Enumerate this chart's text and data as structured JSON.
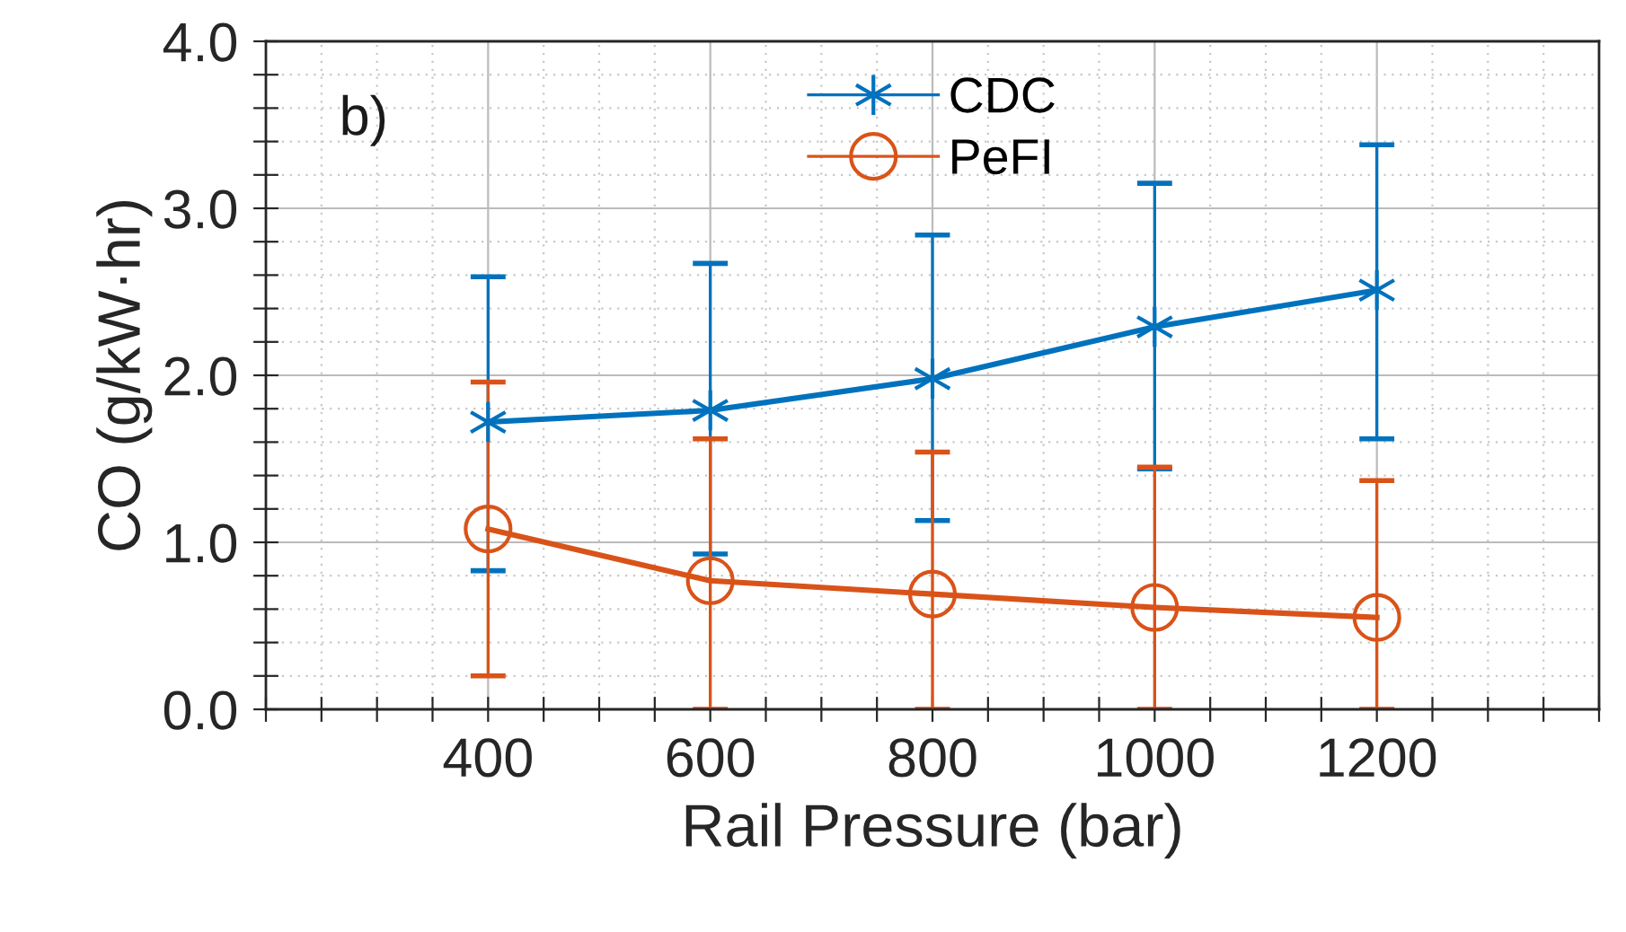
{
  "chart_data": {
    "type": "line",
    "xlabel": "Rail Pressure (bar)",
    "ylabel": "CO (g/kW·hr)",
    "annotations": [
      "b)"
    ],
    "x": [
      400,
      600,
      800,
      1000,
      1200
    ],
    "series": [
      {
        "name": "CDC",
        "color": "#0072bd",
        "marker": "cross",
        "values": [
          1.72,
          1.79,
          1.98,
          2.29,
          2.51
        ],
        "errors": [
          [
            0.83,
            2.59
          ],
          [
            0.93,
            2.67
          ],
          [
            1.13,
            2.84
          ],
          [
            1.44,
            3.15
          ],
          [
            1.62,
            3.38
          ]
        ]
      },
      {
        "name": "PeFI",
        "color": "#d95319",
        "marker": "circle",
        "values": [
          1.08,
          0.77,
          0.69,
          0.61,
          0.55
        ],
        "errors": [
          [
            0.2,
            1.96
          ],
          [
            0,
            1.62
          ],
          [
            0,
            1.54
          ],
          [
            0,
            1.45
          ],
          [
            0,
            1.37
          ]
        ]
      }
    ],
    "xlim": [
      200,
      1400
    ],
    "xticks": [
      {
        "value": 200,
        "label": null
      },
      {
        "value": 250,
        "label": null
      },
      {
        "value": 300,
        "label": null
      },
      {
        "value": 350,
        "label": null
      },
      400,
      {
        "value": 450,
        "label": null
      },
      {
        "value": 500,
        "label": null
      },
      {
        "value": 550,
        "label": null
      },
      600,
      {
        "value": 650,
        "label": null
      },
      {
        "value": 700,
        "label": null
      },
      {
        "value": 750,
        "label": null
      },
      800,
      {
        "value": 850,
        "label": null
      },
      {
        "value": 900,
        "label": null
      },
      {
        "value": 950,
        "label": null
      },
      1000,
      {
        "value": 1050,
        "label": null
      },
      {
        "value": 1100,
        "label": null
      },
      {
        "value": 1150,
        "label": null
      },
      1200,
      {
        "value": 1250,
        "label": null
      },
      {
        "value": 1300,
        "label": null
      },
      {
        "value": 1350,
        "label": null
      },
      {
        "value": 1400,
        "label": null
      }
    ],
    "ylim": [
      0,
      4
    ],
    "yticks": [
      {
        "value": 0,
        "label": "0.0"
      },
      {
        "value": 0.2,
        "label": null
      },
      {
        "value": 0.4,
        "label": null
      },
      {
        "value": 0.6,
        "label": null
      },
      {
        "value": 0.8,
        "label": null
      },
      {
        "value": 1,
        "label": "1.0"
      },
      {
        "value": 1.2,
        "label": null
      },
      {
        "value": 1.4,
        "label": null
      },
      {
        "value": 1.6,
        "label": null
      },
      {
        "value": 1.8,
        "label": null
      },
      {
        "value": 2,
        "label": "2.0"
      },
      {
        "value": 2.2,
        "label": null
      },
      {
        "value": 2.4,
        "label": null
      },
      {
        "value": 2.6,
        "label": null
      },
      {
        "value": 2.8,
        "label": null
      },
      {
        "value": 3,
        "label": "3.0"
      },
      {
        "value": 3.2,
        "label": null
      },
      {
        "value": 3.4,
        "label": null
      },
      {
        "value": 3.6,
        "label": null
      },
      {
        "value": 3.8,
        "label": null
      },
      {
        "value": 4,
        "label": "4.0"
      }
    ],
    "grid": true,
    "legend": "top",
    "line_style": "solid"
  }
}
